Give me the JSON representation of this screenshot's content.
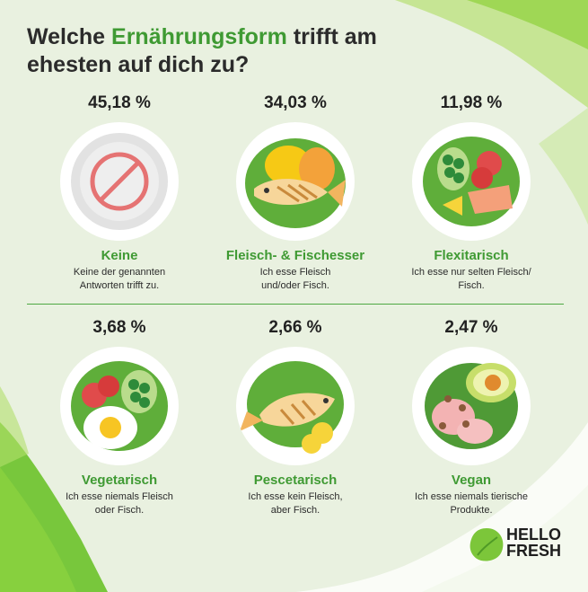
{
  "title": {
    "line1_pre": "Welche ",
    "highlight": "Ernährungsform",
    "line1_post": " trifft am",
    "line2": "ehesten auf dich zu?"
  },
  "colors": {
    "accent": "#3f9a33",
    "background": "#e9f1e0",
    "percent_text": "#222222"
  },
  "chart_data": {
    "type": "table",
    "title": "Welche Ernährungsform trifft am ehesten auf dich zu?",
    "unit": "%",
    "items": [
      {
        "percent": "45,18 %",
        "value": 45.18,
        "category": "Keine",
        "description": [
          "Keine der genannten",
          "Antworten trifft zu."
        ],
        "icon": "prohibition-plate-icon"
      },
      {
        "percent": "34,03 %",
        "value": 34.03,
        "category": "Fleisch- & Fischesser",
        "description": [
          "Ich esse Fleisch",
          "und/oder Fisch."
        ],
        "icon": "meat-fish-plate-icon"
      },
      {
        "percent": "11,98 %",
        "value": 11.98,
        "category": "Flexitarisch",
        "description": [
          "Ich esse nur selten Fleisch/",
          "Fisch."
        ],
        "icon": "flexitarian-plate-icon"
      },
      {
        "percent": "3,68 %",
        "value": 3.68,
        "category": "Vegetarisch",
        "description": [
          "Ich esse niemals Fleisch",
          "oder Fisch."
        ],
        "icon": "vegetarian-plate-icon"
      },
      {
        "percent": "2,66 %",
        "value": 2.66,
        "category": "Pescetarisch",
        "description": [
          "Ich esse kein Fleisch,",
          "aber Fisch."
        ],
        "icon": "fish-plate-icon"
      },
      {
        "percent": "2,47 %",
        "value": 2.47,
        "category": "Vegan",
        "description": [
          "Ich esse niemals tierische",
          "Produkte."
        ],
        "icon": "avocado-salad-plate-icon"
      }
    ]
  },
  "brand": {
    "line1": "HELLO",
    "line2": "FRESH",
    "logo_icon": "lime-logo-icon"
  }
}
